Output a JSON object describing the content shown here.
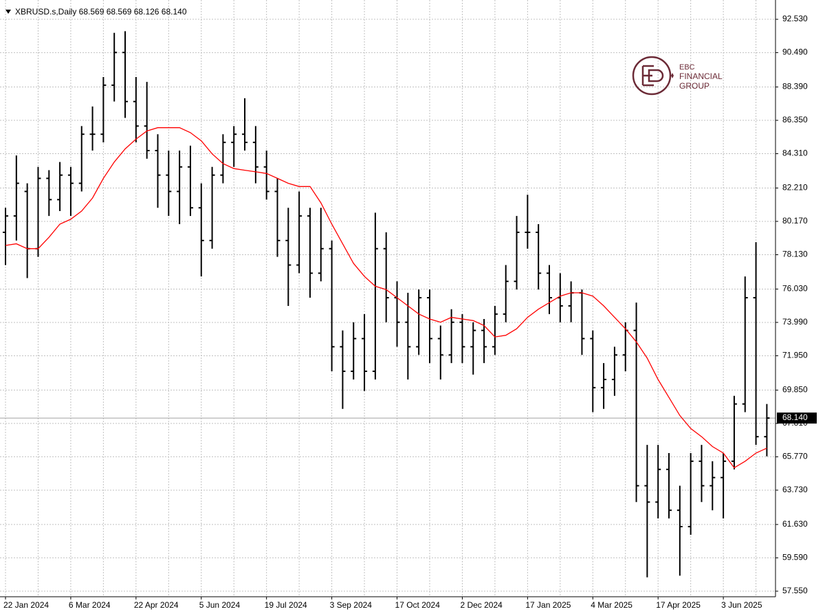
{
  "chart_data": {
    "type": "ohlc",
    "title": "XBRUSD.s,Daily  68.569 68.569 68.126 68.140",
    "categories": [
      "22 Jan 2024",
      null,
      null,
      null,
      null,
      null,
      "6 Mar 2024",
      null,
      null,
      null,
      null,
      null,
      "22 Apr 2024",
      null,
      null,
      null,
      null,
      null,
      "5 Jun 2024",
      null,
      null,
      null,
      null,
      null,
      "19 Jul 2024",
      null,
      null,
      null,
      null,
      null,
      "3 Sep 2024",
      null,
      null,
      null,
      null,
      null,
      "17 Oct 2024",
      null,
      null,
      null,
      null,
      null,
      "2 Dec 2024",
      null,
      null,
      null,
      null,
      null,
      "17 Jan 2025",
      null,
      null,
      null,
      null,
      null,
      "4 Mar 2025",
      null,
      null,
      null,
      null,
      null,
      "17 Apr 2025",
      null,
      null,
      null,
      null,
      null,
      "3 Jun 2025",
      null,
      null,
      null,
      null
    ],
    "open": [
      79.5,
      80.5,
      82,
      78.5,
      82.8,
      81.5,
      83,
      82.5,
      85.5,
      85.5,
      88.5,
      90.5,
      87.5,
      86,
      84.5,
      83,
      82,
      83.5,
      81,
      79,
      83,
      85,
      85.5,
      85,
      83.5,
      82,
      79,
      77.5,
      80.5,
      77,
      78.5,
      72.5,
      71,
      73,
      71,
      78.5,
      75.5,
      74,
      72.5,
      75.5,
      73,
      72,
      74,
      72.5,
      73.5,
      72.5,
      74.5,
      76.5,
      79.5,
      79.5,
      77,
      75.5,
      75,
      75.8,
      73,
      70,
      70.5,
      72,
      73.5,
      64,
      63,
      65,
      62.5,
      61.5,
      65.5,
      64,
      64.5,
      65.5,
      69,
      75.5,
      67
    ],
    "high": [
      81,
      84.2,
      82.5,
      83.5,
      83.3,
      83.8,
      83.5,
      86,
      87.2,
      89,
      91.7,
      91.8,
      89,
      88.7,
      85.5,
      84.5,
      84.5,
      84.8,
      82.5,
      83.5,
      85.5,
      86,
      87.7,
      86,
      84.5,
      82.8,
      81,
      82,
      81,
      81,
      79,
      73.5,
      74,
      74.5,
      80.7,
      79.5,
      76.5,
      75.8,
      76,
      76,
      73.8,
      74.8,
      74.5,
      74,
      74.2,
      75,
      77.5,
      80.5,
      81.8,
      80,
      77.5,
      77,
      76.5,
      76,
      73.5,
      71.5,
      72.5,
      74,
      75.2,
      66.5,
      66.5,
      66,
      64,
      66,
      66.5,
      65.5,
      66,
      69.5,
      76.8,
      78.9,
      69
    ],
    "low": [
      77.5,
      79,
      76.7,
      78,
      80.5,
      80.8,
      80.5,
      82,
      84.5,
      85,
      87.5,
      86.5,
      85,
      84,
      81,
      80.5,
      80,
      80.5,
      76.8,
      78.5,
      82.5,
      83.5,
      84.5,
      82.5,
      81.5,
      78,
      75,
      77,
      75.5,
      76.5,
      71,
      68.7,
      70.5,
      69.8,
      70.5,
      74,
      72.5,
      70.5,
      72,
      71.5,
      70.5,
      71.5,
      71.5,
      70.8,
      71.5,
      72,
      74,
      76,
      78.5,
      76,
      74.5,
      74,
      74,
      72,
      68.5,
      68.7,
      69.5,
      71,
      63,
      58.4,
      62,
      62,
      58.5,
      61,
      63,
      62.5,
      62,
      65,
      68.5,
      66.5,
      65.8
    ],
    "close": [
      80.5,
      82.5,
      78.5,
      82.8,
      81.5,
      83,
      82.5,
      85.5,
      85.5,
      88.5,
      90.5,
      87.5,
      86,
      84.5,
      83,
      82,
      83.5,
      81,
      79,
      83,
      85,
      85.5,
      85,
      83.5,
      82,
      79,
      77.5,
      80.5,
      77,
      78.5,
      72.5,
      71,
      73,
      71,
      78.5,
      75.5,
      74,
      72.5,
      75.5,
      73,
      72,
      74,
      72.5,
      73.5,
      72.5,
      74.5,
      76.5,
      79.5,
      79.5,
      77,
      75.5,
      75,
      75.8,
      73,
      70,
      70.5,
      72,
      73.5,
      64,
      63,
      65,
      62.5,
      61.5,
      65.5,
      64,
      64.5,
      65.5,
      69,
      75.5,
      67,
      68.14
    ],
    "color": "#000000",
    "ma": {
      "color": "#ff0000",
      "values": [
        78.7,
        78.8,
        78.5,
        78.5,
        79.2,
        80,
        80.3,
        80.8,
        81.6,
        82.8,
        83.8,
        84.6,
        85.2,
        85.7,
        85.9,
        85.9,
        85.9,
        85.6,
        85.1,
        84.3,
        83.7,
        83.4,
        83.3,
        83.2,
        83.1,
        82.8,
        82.5,
        82.3,
        82.3,
        81.3,
        80,
        78.8,
        77.6,
        76.8,
        76.2,
        76,
        75.5,
        75,
        74.5,
        74.2,
        74,
        74.3,
        74.2,
        74.1,
        73.8,
        73.1,
        73.2,
        73.6,
        74.3,
        74.8,
        75.2,
        75.6,
        75.8,
        75.8,
        75.6,
        75,
        74.3,
        73.6,
        72.8,
        71.8,
        70.5,
        69.4,
        68.3,
        67.5,
        67,
        66.4,
        66,
        65.1,
        65.5,
        66,
        66.3
      ]
    },
    "ylim": [
      57.21,
      93.71
    ],
    "yticks": [
      {
        "value": 92.53,
        "label": "92.530"
      },
      {
        "value": 90.49,
        "label": "90.490"
      },
      {
        "value": 88.39,
        "label": "88.390"
      },
      {
        "value": 86.35,
        "label": "86.350"
      },
      {
        "value": 84.31,
        "label": "84.310"
      },
      {
        "value": 82.21,
        "label": "82.210"
      },
      {
        "value": 80.17,
        "label": "80.170"
      },
      {
        "value": 78.13,
        "label": "78.130"
      },
      {
        "value": 76.03,
        "label": "76.030"
      },
      {
        "value": 73.99,
        "label": "73.990"
      },
      {
        "value": 71.95,
        "label": "71.950"
      },
      {
        "value": 69.85,
        "label": "69.850"
      },
      {
        "value": 67.81,
        "label": "67.810"
      },
      {
        "value": 65.77,
        "label": "65.770"
      },
      {
        "value": 63.73,
        "label": "63.730"
      },
      {
        "value": 61.63,
        "label": "61.630"
      },
      {
        "value": 59.59,
        "label": "59.590"
      },
      {
        "value": 57.55,
        "label": "57.550"
      }
    ],
    "last_price": {
      "value": 68.14,
      "label": "68.140"
    },
    "grid": true
  },
  "logo": {
    "lines": [
      "EBC",
      "FINANCIAL",
      "GROUP"
    ]
  }
}
